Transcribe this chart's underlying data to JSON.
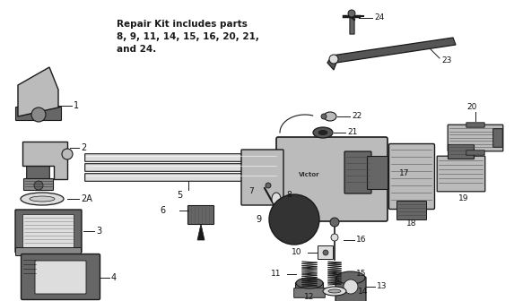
{
  "background_color": "#ffffff",
  "text_color": "#111111",
  "figsize": [
    5.73,
    3.36
  ],
  "dpi": 100,
  "repair_kit_text_line1": "Repair Kit includes parts",
  "repair_kit_text_line2": "8, 9, 11, 14, 15, 16, 20, 21,",
  "repair_kit_text_line3": "and 24.",
  "dark": "#1a1a1a",
  "mid": "#666666",
  "light": "#bbbbbb",
  "lighter": "#dddddd"
}
